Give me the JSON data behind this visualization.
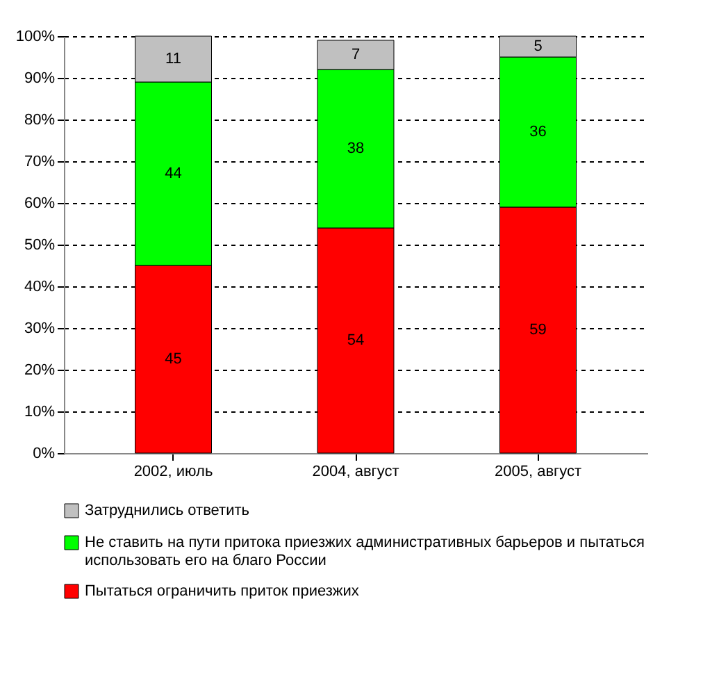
{
  "chart_data": {
    "type": "bar",
    "stacked": true,
    "categories": [
      "2002, июль",
      "2004, август",
      "2005, август"
    ],
    "series": [
      {
        "name": "Пытаться ограничить приток приезжих",
        "color": "#ff0000",
        "values": [
          45,
          54,
          59
        ]
      },
      {
        "name": "Не ставить на пути притока приезжих административных барьеров и пытаться использовать его на благо России",
        "color": "#00ff00",
        "values": [
          44,
          38,
          36
        ]
      },
      {
        "name": "Затруднились ответить",
        "color": "#c0c0c0",
        "values": [
          11,
          7,
          5
        ]
      }
    ],
    "ylim": [
      0,
      100
    ],
    "yticks": [
      {
        "value": 0,
        "label": "0%"
      },
      {
        "value": 10,
        "label": "10%"
      },
      {
        "value": 20,
        "label": "20%"
      },
      {
        "value": 30,
        "label": "30%"
      },
      {
        "value": 40,
        "label": "40%"
      },
      {
        "value": 50,
        "label": "50%"
      },
      {
        "value": 60,
        "label": "60%"
      },
      {
        "value": 70,
        "label": "70%"
      },
      {
        "value": 80,
        "label": "80%"
      },
      {
        "value": 90,
        "label": "90%"
      },
      {
        "value": 100,
        "label": "100%"
      }
    ],
    "grid": "y",
    "legend": "bottom",
    "data_labels": true
  }
}
